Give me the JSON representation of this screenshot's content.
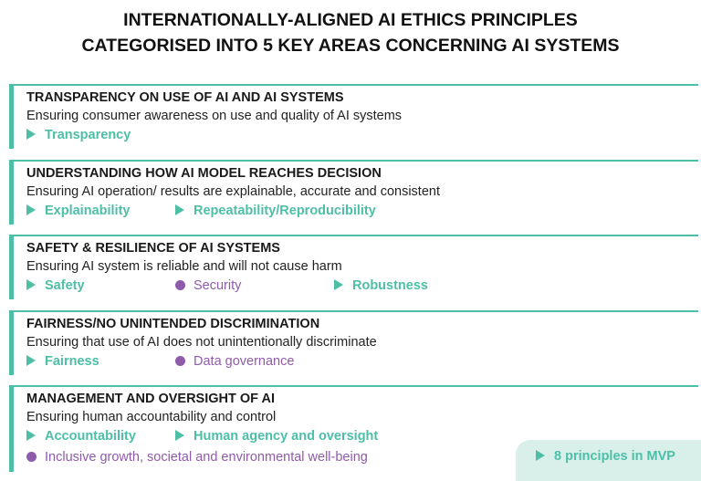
{
  "title": {
    "line1": "INTERNATIONALLY-ALIGNED AI ETHICS PRINCIPLES",
    "line2": "CATEGORISED INTO 5 KEY AREAS CONCERNING AI SYSTEMS"
  },
  "colors": {
    "teal": "#4cbfa6",
    "purple": "#8e5bab"
  },
  "areas": [
    {
      "heading": "TRANSPARENCY ON USE OF AI AND AI SYSTEMS",
      "description": "Ensuring consumer awareness on use and quality of AI systems",
      "principles": [
        {
          "label": "Transparency",
          "marker": "triangle"
        }
      ]
    },
    {
      "heading": "UNDERSTANDING HOW AI MODEL REACHES DECISION",
      "description": "Ensuring AI operation/ results are explainable, accurate and consistent",
      "principles": [
        {
          "label": "Explainability",
          "marker": "triangle"
        },
        {
          "label": "Repeatability/Reproducibility",
          "marker": "triangle"
        }
      ]
    },
    {
      "heading": "SAFETY & RESILIENCE OF AI SYSTEMS",
      "description": "Ensuring AI system is reliable and will not cause harm",
      "principles": [
        {
          "label": "Safety",
          "marker": "triangle"
        },
        {
          "label": "Security",
          "marker": "dot"
        },
        {
          "label": "Robustness",
          "marker": "triangle"
        }
      ]
    },
    {
      "heading": "FAIRNESS/NO UNINTENDED DISCRIMINATION",
      "description": "Ensuring that use of AI does not unintentionally discriminate",
      "principles": [
        {
          "label": "Fairness",
          "marker": "triangle"
        },
        {
          "label": "Data governance",
          "marker": "dot"
        }
      ]
    },
    {
      "heading": "MANAGEMENT AND OVERSIGHT OF AI",
      "description": "Ensuring human accountability and control",
      "principles": [
        {
          "label": "Accountability",
          "marker": "triangle"
        },
        {
          "label": "Human agency and oversight",
          "marker": "triangle"
        },
        {
          "label": "Inclusive growth, societal and environmental well-being",
          "marker": "dot"
        }
      ]
    }
  ],
  "legend": {
    "label": "8 principles in MVP",
    "marker": "triangle"
  }
}
